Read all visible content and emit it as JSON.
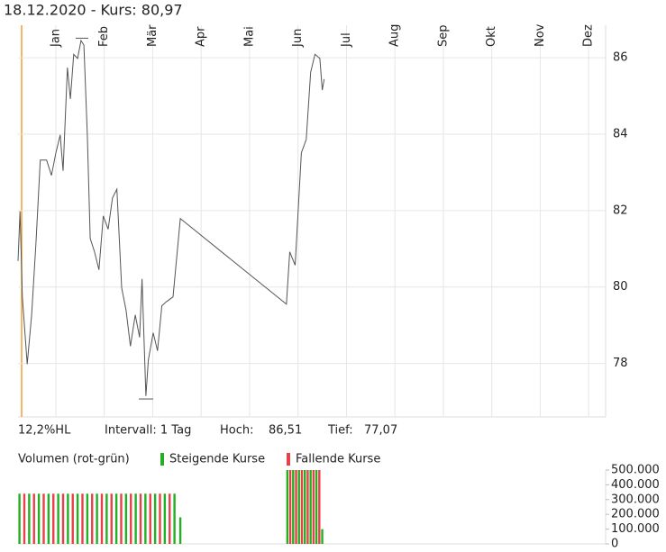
{
  "chart_data": [
    {
      "type": "line",
      "title": "18.12.2020  -  Kurs: 80,97",
      "color": "#555555",
      "x": [
        -0.78,
        -0.74,
        -0.69,
        -0.59,
        -0.5,
        -0.41,
        -0.32,
        -0.19,
        -0.09,
        0,
        0.09,
        0.15,
        0.24,
        0.3,
        0.37,
        0.45,
        0.52,
        0.58,
        0.65,
        0.71,
        0.8,
        0.89,
        0.98,
        1.08,
        1.17,
        1.26,
        1.36,
        1.45,
        1.54,
        1.64,
        1.73,
        1.78,
        1.86,
        1.91,
        2.01,
        2.1,
        2.19,
        2.29,
        2.42,
        2.57,
        4.76,
        4.83,
        4.94,
        5.07,
        5.17,
        5.26,
        5.35,
        5.45,
        5.5,
        5.54
      ],
      "values": [
        80.68,
        81.98,
        79.74,
        77.98,
        79.27,
        81.15,
        83.32,
        83.32,
        82.92,
        83.5,
        83.98,
        83.04,
        85.74,
        84.92,
        86.09,
        85.98,
        86.45,
        86.33,
        83.98,
        81.27,
        80.92,
        80.45,
        81.86,
        81.51,
        82.33,
        82.56,
        79.98,
        79.39,
        78.45,
        79.27,
        78.68,
        80.21,
        77.15,
        78.09,
        78.8,
        78.33,
        79.51,
        79.62,
        79.74,
        81.79,
        79.55,
        80.92,
        80.57,
        83.51,
        83.86,
        85.62,
        86.09,
        85.98,
        85.15,
        85.44
      ],
      "xlim": [
        -0.78,
        11.35
      ],
      "xticks": [
        {
          "value": 0,
          "label": "Jan"
        },
        {
          "value": 1,
          "label": "Feb"
        },
        {
          "value": 2,
          "label": "Mär"
        },
        {
          "value": 3,
          "label": "Apr"
        },
        {
          "value": 4,
          "label": "Mai"
        },
        {
          "value": 5,
          "label": "Jun"
        },
        {
          "value": 6,
          "label": "Jul"
        },
        {
          "value": 7,
          "label": "Aug"
        },
        {
          "value": 8,
          "label": "Sep"
        },
        {
          "value": 9,
          "label": "Okt"
        },
        {
          "value": 10,
          "label": "Nov"
        },
        {
          "value": 11,
          "label": "Dez"
        }
      ],
      "ylim": [
        76.6,
        86.85
      ],
      "yticks": [
        78,
        80,
        82,
        84,
        86
      ],
      "grid": true,
      "range_label": "12,2%HL",
      "interval": "Intervall: 1 Tag",
      "high_label": "Hoch:",
      "high": {
        "value": 86.51,
        "label": "86,51"
      },
      "low_label": "Tief:",
      "low": {
        "value": 77.07,
        "label": "77,07"
      }
    },
    {
      "type": "bar",
      "title": "Volumen (rot-grün)",
      "xlim": [
        -0.78,
        11.35
      ],
      "ylim": [
        0,
        500000
      ],
      "yticks": [
        0,
        {
          "value": 100000,
          "label": "100.000"
        },
        {
          "value": 200000,
          "label": "200.000"
        },
        {
          "value": 300000,
          "label": "300.000"
        },
        {
          "value": 400000,
          "label": "400.000"
        },
        {
          "value": 500000,
          "label": "500.000"
        }
      ],
      "series": [
        {
          "name": "Steigende Kurse",
          "color": "#22b022",
          "x": [
            -0.75,
            -0.55,
            -0.35,
            -0.15,
            0.05,
            0.25,
            0.45,
            0.65,
            0.85,
            1.05,
            1.25,
            1.45,
            1.65,
            1.85,
            2.05,
            2.25,
            2.45,
            2.57,
            4.78,
            4.9,
            5.02,
            5.14,
            5.26,
            5.38,
            5.5
          ],
          "values": [
            340000,
            340000,
            340000,
            340000,
            340000,
            340000,
            340000,
            340000,
            340000,
            340000,
            340000,
            340000,
            340000,
            340000,
            340000,
            340000,
            340000,
            180000,
            500000,
            500000,
            500000,
            500000,
            500000,
            500000,
            100000
          ]
        },
        {
          "name": "Fallende Kurse",
          "color": "#e8404a",
          "x": [
            -0.65,
            -0.45,
            -0.25,
            -0.05,
            0.15,
            0.35,
            0.55,
            0.75,
            0.95,
            1.15,
            1.35,
            1.55,
            1.75,
            1.95,
            2.15,
            2.35,
            4.84,
            4.96,
            5.08,
            5.2,
            5.32,
            5.44
          ],
          "values": [
            340000,
            340000,
            340000,
            340000,
            340000,
            340000,
            340000,
            340000,
            340000,
            340000,
            340000,
            340000,
            340000,
            340000,
            340000,
            340000,
            500000,
            500000,
            500000,
            500000,
            500000,
            500000
          ]
        }
      ]
    }
  ]
}
